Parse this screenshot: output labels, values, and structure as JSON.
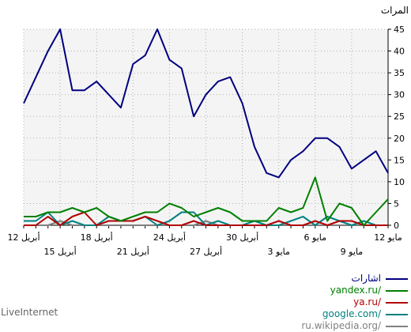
{
  "chart_data": {
    "type": "line",
    "ylabel": "المرات",
    "ylim": [
      0,
      45
    ],
    "yticks": [
      0,
      5,
      10,
      15,
      20,
      25,
      30,
      35,
      40,
      45
    ],
    "x_tick_labels_row1": [
      "12 مايو",
      "6 مايو",
      "30 أبريل",
      "24 أبريل",
      "18 أبريل",
      "12 أبريل"
    ],
    "x_tick_labels_row2": [
      "9 مايو",
      "3 مايو",
      "27 أبريل",
      "21 أبريل",
      "15 أبريل"
    ],
    "series": [
      {
        "name": "اشارات",
        "color": "#000080",
        "values": [
          12,
          17,
          15,
          13,
          18,
          20,
          20,
          17,
          15,
          11,
          12,
          18,
          28,
          34,
          33,
          30,
          25,
          36,
          38,
          45,
          39,
          37,
          27,
          30,
          33,
          31,
          31,
          45,
          40,
          34,
          28
        ]
      },
      {
        "name": "yandex.ru/",
        "color": "#008000",
        "values": [
          6,
          3,
          0,
          4,
          5,
          1,
          11,
          4,
          3,
          4,
          1,
          1,
          1,
          3,
          4,
          3,
          2,
          4,
          5,
          3,
          3,
          2,
          1,
          2,
          4,
          3,
          4,
          3,
          3,
          2,
          2
        ]
      },
      {
        "name": "ya.ru/",
        "color": "#b00000",
        "values": [
          0,
          0,
          0,
          1,
          1,
          0,
          1,
          0,
          0,
          1,
          0,
          0,
          0,
          0,
          0,
          0,
          1,
          0,
          0,
          1,
          2,
          1,
          1,
          1,
          0,
          3,
          2,
          0,
          2,
          0,
          0
        ]
      },
      {
        "name": "google.com/",
        "color": "#008080",
        "values": [
          0,
          0,
          1,
          0,
          1,
          2,
          0,
          2,
          1,
          0,
          0,
          1,
          0,
          0,
          1,
          0,
          3,
          3,
          1,
          0,
          2,
          1,
          1,
          2,
          0,
          0,
          1,
          0,
          3,
          1,
          1
        ]
      },
      {
        "name": "ru.wikipedia.org/",
        "color": "#808080",
        "values": [
          0,
          0,
          0,
          0,
          0,
          0,
          0,
          0,
          0,
          0,
          0,
          0,
          0,
          0,
          0,
          1,
          0,
          0,
          0,
          0,
          0,
          0,
          0,
          0,
          0,
          0,
          0,
          1,
          0,
          0,
          0
        ]
      }
    ]
  },
  "legend": {
    "items": [
      {
        "label": "اشارات",
        "color": "#000080"
      },
      {
        "label": "yandex.ru/",
        "color": "#008000"
      },
      {
        "label": "ya.ru/",
        "color": "#b00000"
      },
      {
        "label": "google.com/",
        "color": "#008080"
      },
      {
        "label": "ru.wikipedia.org/",
        "color": "#808080"
      }
    ]
  },
  "brand": "LiveInternet"
}
